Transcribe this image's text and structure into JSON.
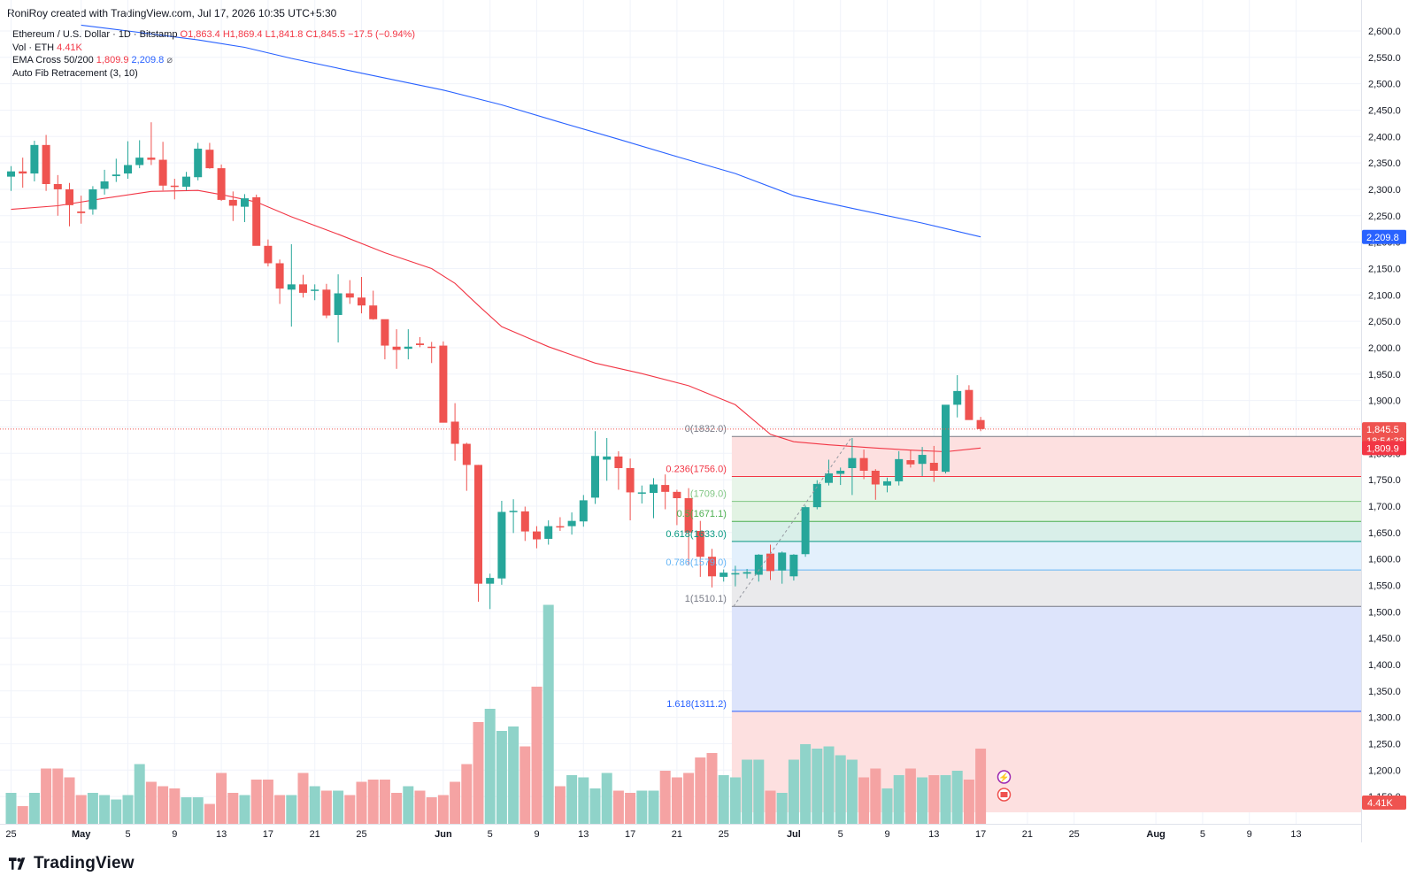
{
  "header": {
    "caption": "RoniRoy created with TradingView.com, Jul 17, 2026 10:35 UTC+5:30"
  },
  "legend": {
    "symbol": "Ethereum / U.S. Dollar · 1D · Bitstamp",
    "open": "O1,863.4",
    "high": "H1,869.4",
    "low": "L1,841.8",
    "close": "C1,845.5",
    "change": "−17.5 (−0.94%)",
    "vol_label": "Vol · ETH",
    "vol_value": "4.41K",
    "ema_label": "EMA Cross 50/200",
    "ema50_value": "1,809.9",
    "ema200_value": "2,209.8",
    "ema_icon": "⌀",
    "fib_label": "Auto Fib Retracement (3, 10)"
  },
  "brand": {
    "name": "TradingView",
    "icon": "tradingview-logo-icon"
  },
  "colors": {
    "up": "#26a69a",
    "down": "#ef5350",
    "vol_up": "#8fd3c9",
    "vol_down": "#f5a3a3",
    "ema50": "#f23645",
    "ema200": "#2962ff"
  },
  "chart_data": {
    "type": "candlestick",
    "interval": "1D",
    "y_axis": {
      "range": [
        1120,
        2610
      ],
      "ticks": [
        "1,150.0",
        "1,200.0",
        "1,250.0",
        "1,300.0",
        "1,350.0",
        "1,400.0",
        "1,450.0",
        "1,500.0",
        "1,550.0",
        "1,600.0",
        "1,650.0",
        "1,700.0",
        "1,750.0",
        "1,800.0",
        "1,850.0",
        "1,900.0",
        "1,950.0",
        "2,000.0",
        "2,050.0",
        "2,100.0",
        "2,150.0",
        "2,200.0",
        "2,250.0",
        "2,300.0",
        "2,350.0",
        "2,400.0",
        "2,450.0",
        "2,500.0",
        "2,550.0",
        "2,600.0"
      ],
      "grid": true
    },
    "x_axis": {
      "labels": [
        {
          "day": 0,
          "text": "25"
        },
        {
          "day": 6,
          "text": "May"
        },
        {
          "day": 10,
          "text": "5"
        },
        {
          "day": 14,
          "text": "9"
        },
        {
          "day": 18,
          "text": "13"
        },
        {
          "day": 22,
          "text": "17"
        },
        {
          "day": 26,
          "text": "21"
        },
        {
          "day": 30,
          "text": "25"
        },
        {
          "day": 37,
          "text": "Jun"
        },
        {
          "day": 41,
          "text": "5"
        },
        {
          "day": 45,
          "text": "9"
        },
        {
          "day": 49,
          "text": "13"
        },
        {
          "day": 53,
          "text": "17"
        },
        {
          "day": 57,
          "text": "21"
        },
        {
          "day": 61,
          "text": "25"
        },
        {
          "day": 67,
          "text": "Jul"
        },
        {
          "day": 71,
          "text": "5"
        },
        {
          "day": 75,
          "text": "9"
        },
        {
          "day": 79,
          "text": "13"
        },
        {
          "day": 83,
          "text": "17"
        },
        {
          "day": 87,
          "text": "21"
        },
        {
          "day": 91,
          "text": "25"
        },
        {
          "day": 98,
          "text": "Aug"
        },
        {
          "day": 102,
          "text": "5"
        },
        {
          "day": 106,
          "text": "9"
        },
        {
          "day": 110,
          "text": "13"
        }
      ]
    },
    "candles": [
      [
        2324,
        2344,
        2297,
        2334
      ],
      [
        2334,
        2360,
        2303,
        2330
      ],
      [
        2330,
        2392,
        2315,
        2384
      ],
      [
        2384,
        2403,
        2297,
        2310
      ],
      [
        2310,
        2327,
        2250,
        2300
      ],
      [
        2300,
        2312,
        2230,
        2270
      ],
      [
        2258,
        2288,
        2235,
        2255
      ],
      [
        2262,
        2306,
        2252,
        2300
      ],
      [
        2301,
        2337,
        2290,
        2315
      ],
      [
        2325,
        2358,
        2314,
        2328
      ],
      [
        2330,
        2391,
        2320,
        2346
      ],
      [
        2346,
        2393,
        2340,
        2360
      ],
      [
        2360,
        2427,
        2346,
        2356
      ],
      [
        2356,
        2390,
        2298,
        2307
      ],
      [
        2307,
        2320,
        2281,
        2305
      ],
      [
        2305,
        2333,
        2298,
        2324
      ],
      [
        2323,
        2388,
        2317,
        2377
      ],
      [
        2375,
        2388,
        2339,
        2340
      ],
      [
        2340,
        2347,
        2278,
        2280
      ],
      [
        2280,
        2296,
        2240,
        2269
      ],
      [
        2267,
        2291,
        2238,
        2283
      ],
      [
        2285,
        2290,
        2194,
        2193
      ],
      [
        2193,
        2205,
        2154,
        2160
      ],
      [
        2160,
        2167,
        2083,
        2112
      ],
      [
        2110,
        2196,
        2040,
        2120
      ],
      [
        2120,
        2138,
        2095,
        2104
      ],
      [
        2109,
        2120,
        2090,
        2110
      ],
      [
        2110,
        2121,
        2056,
        2061
      ],
      [
        2062,
        2139,
        2010,
        2103
      ],
      [
        2103,
        2128,
        2083,
        2095
      ],
      [
        2095,
        2134,
        2065,
        2080
      ],
      [
        2080,
        2108,
        2053,
        2054
      ],
      [
        2054,
        2043,
        1978,
        2004
      ],
      [
        2002,
        2035,
        1960,
        1996
      ],
      [
        1998,
        2035,
        1978,
        2002
      ],
      [
        2008,
        2020,
        2001,
        2005
      ],
      [
        2002,
        2011,
        1971,
        2000
      ],
      [
        2004,
        2012,
        1866,
        1858
      ],
      [
        1860,
        1895,
        1786,
        1818
      ],
      [
        1818,
        1820,
        1729,
        1778
      ],
      [
        1778,
        1778,
        1519,
        1553
      ],
      [
        1553,
        1572,
        1505,
        1564
      ],
      [
        1563,
        1710,
        1551,
        1689
      ],
      [
        1690,
        1713,
        1649,
        1691
      ],
      [
        1690,
        1699,
        1634,
        1652
      ],
      [
        1652,
        1662,
        1620,
        1637
      ],
      [
        1638,
        1673,
        1627,
        1662
      ],
      [
        1662,
        1679,
        1653,
        1661
      ],
      [
        1662,
        1688,
        1646,
        1672
      ],
      [
        1671,
        1721,
        1661,
        1711
      ],
      [
        1716,
        1842,
        1704,
        1795
      ],
      [
        1788,
        1829,
        1748,
        1794
      ],
      [
        1794,
        1804,
        1731,
        1772
      ],
      [
        1772,
        1790,
        1673,
        1726
      ],
      [
        1725,
        1739,
        1705,
        1726
      ],
      [
        1725,
        1753,
        1677,
        1741
      ],
      [
        1740,
        1760,
        1694,
        1727
      ],
      [
        1727,
        1731,
        1664,
        1715
      ],
      [
        1715,
        1734,
        1588,
        1650
      ],
      [
        1653,
        1672,
        1566,
        1604
      ],
      [
        1604,
        1619,
        1546,
        1567
      ],
      [
        1566,
        1580,
        1557,
        1574
      ],
      [
        1572,
        1587,
        1548,
        1573
      ],
      [
        1572,
        1581,
        1563,
        1575
      ],
      [
        1570,
        1609,
        1557,
        1608
      ],
      [
        1610,
        1627,
        1560,
        1577
      ],
      [
        1578,
        1614,
        1553,
        1612
      ],
      [
        1567,
        1609,
        1559,
        1608
      ],
      [
        1609,
        1701,
        1604,
        1698
      ],
      [
        1698,
        1749,
        1694,
        1742
      ],
      [
        1744,
        1788,
        1739,
        1762
      ],
      [
        1761,
        1773,
        1740,
        1767
      ],
      [
        1772,
        1829,
        1721,
        1791
      ],
      [
        1791,
        1807,
        1751,
        1767
      ],
      [
        1767,
        1770,
        1712,
        1741
      ],
      [
        1739,
        1754,
        1726,
        1747
      ],
      [
        1747,
        1804,
        1739,
        1789
      ],
      [
        1787,
        1807,
        1773,
        1779
      ],
      [
        1780,
        1812,
        1757,
        1797
      ],
      [
        1782,
        1814,
        1746,
        1767
      ],
      [
        1765,
        1880,
        1762,
        1892
      ],
      [
        1892,
        1948,
        1868,
        1918
      ],
      [
        1920,
        1929,
        1866,
        1863
      ],
      [
        1863,
        1869,
        1842,
        1846
      ]
    ],
    "volume": {
      "unit": "ETH",
      "scale_max": 100,
      "values": [
        14,
        8,
        14,
        25,
        25,
        21,
        13,
        14,
        13,
        11,
        13,
        27,
        19,
        17,
        16,
        12,
        12,
        9,
        23,
        14,
        13,
        20,
        20,
        13,
        13,
        23,
        17,
        15,
        15,
        13,
        19,
        20,
        20,
        14,
        17,
        15,
        12,
        13,
        19,
        27,
        46,
        52,
        42,
        44,
        35,
        62,
        99,
        17,
        22,
        21,
        16,
        23,
        15,
        14,
        15,
        15,
        24,
        21,
        23,
        30,
        32,
        22,
        21,
        29,
        29,
        15,
        14,
        29,
        36,
        34,
        35,
        31,
        29,
        21,
        25,
        16,
        22,
        25,
        21,
        22,
        22,
        24,
        20,
        34
      ],
      "last_label": "4.41K"
    },
    "ema_cross": [
      {
        "name": "EMA 50",
        "color": "#f23645",
        "last": 1809.9,
        "points": [
          [
            0,
            2262
          ],
          [
            4,
            2269
          ],
          [
            8,
            2283
          ],
          [
            12,
            2296
          ],
          [
            16,
            2298
          ],
          [
            18,
            2290
          ],
          [
            21,
            2276
          ],
          [
            24,
            2248
          ],
          [
            28,
            2215
          ],
          [
            32,
            2180
          ],
          [
            36,
            2150
          ],
          [
            38,
            2122
          ],
          [
            40,
            2080
          ],
          [
            42,
            2040
          ],
          [
            46,
            2002
          ],
          [
            50,
            1971
          ],
          [
            54,
            1951
          ],
          [
            58,
            1928
          ],
          [
            62,
            1892
          ],
          [
            65,
            1836
          ],
          [
            67,
            1822
          ],
          [
            70,
            1816
          ],
          [
            74,
            1810
          ],
          [
            77,
            1806
          ],
          [
            80,
            1803
          ],
          [
            83,
            1810
          ]
        ]
      },
      {
        "name": "EMA 200",
        "color": "#2962ff",
        "last": 2209.8,
        "points": [
          [
            6,
            2611
          ],
          [
            10,
            2600
          ],
          [
            16,
            2583
          ],
          [
            20,
            2569
          ],
          [
            24,
            2548
          ],
          [
            30,
            2520
          ],
          [
            37,
            2488
          ],
          [
            42,
            2460
          ],
          [
            47,
            2427
          ],
          [
            52,
            2395
          ],
          [
            57,
            2362
          ],
          [
            62,
            2330
          ],
          [
            67,
            2288
          ],
          [
            72,
            2264
          ],
          [
            78,
            2236
          ],
          [
            83,
            2210
          ]
        ]
      }
    ],
    "fib": {
      "start_day": 62,
      "levels": [
        {
          "ratio": "0",
          "text": "0(1832.0)",
          "price": 1832.0,
          "color": "#787b86"
        },
        {
          "ratio": "0.236",
          "text": "0.236(1756.0)",
          "price": 1756.0,
          "color": "#f23645"
        },
        {
          "ratio": "0.382",
          "text": "(1709.0)",
          "price": 1709.0,
          "color": "#81c784"
        },
        {
          "ratio": "0.5",
          "text": "0.5(1671.1)",
          "price": 1671.1,
          "color": "#4caf50"
        },
        {
          "ratio": "0.618",
          "text": "0.618(1633.0)",
          "price": 1633.0,
          "color": "#089981"
        },
        {
          "ratio": "0.786",
          "text": "0.786(1579.0)",
          "price": 1579.0,
          "color": "#64b5f6"
        },
        {
          "ratio": "1",
          "text": "1(1510.1)",
          "price": 1510.1,
          "color": "#787b86"
        },
        {
          "ratio": "1.618",
          "text": "1.618(1311.2)",
          "price": 1311.2,
          "color": "#2962ff"
        }
      ],
      "zones": [
        {
          "from": 1832.0,
          "to": 1756.0,
          "fill": "#fde0e0"
        },
        {
          "from": 1756.0,
          "to": 1709.0,
          "fill": "#e8f5e9"
        },
        {
          "from": 1709.0,
          "to": 1671.1,
          "fill": "#e2f3e3"
        },
        {
          "from": 1671.1,
          "to": 1633.0,
          "fill": "#d9efe9"
        },
        {
          "from": 1633.0,
          "to": 1579.0,
          "fill": "#e3f0fc"
        },
        {
          "from": 1579.0,
          "to": 1510.1,
          "fill": "#eaeaec"
        },
        {
          "from": 1510.1,
          "to": 1311.2,
          "fill": "#dde4fb"
        },
        {
          "from": 1311.2,
          "to": 1120,
          "fill": "#fde0e0"
        }
      ]
    },
    "price_labels": [
      {
        "text": "2,209.8",
        "color": "#2962ff",
        "price": 2209.8
      },
      {
        "text": "1,845.5",
        "color": "#ef5350",
        "price": 1845.5
      },
      {
        "text": "18:54:38",
        "color": "#ef5350",
        "price": 1824
      },
      {
        "text": "1,809.9",
        "color": "#f23645",
        "price": 1809.9
      }
    ]
  }
}
